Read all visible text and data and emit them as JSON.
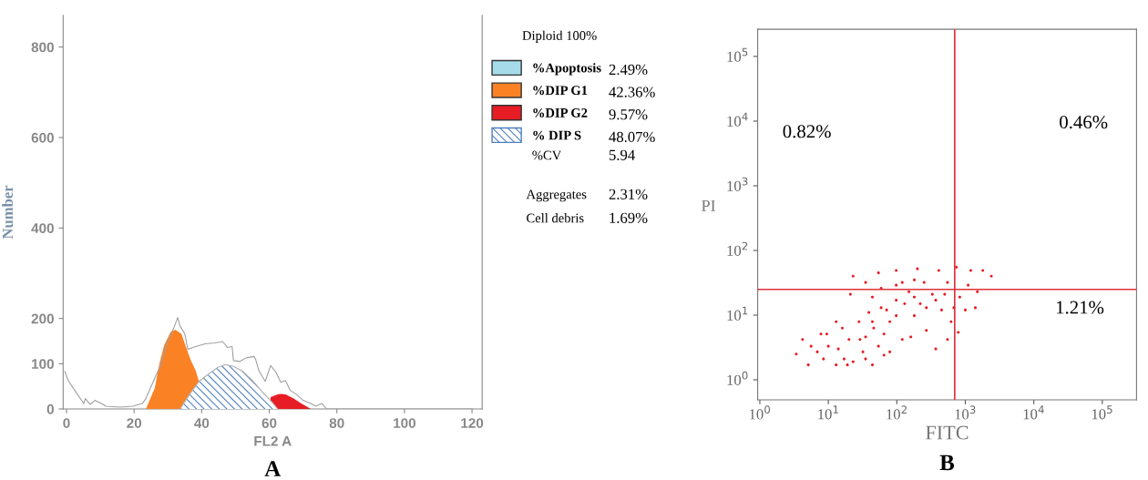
{
  "chart_data": [
    {
      "type": "area",
      "title": "A",
      "xlabel": "FL2 A",
      "ylabel": "Number",
      "xlim": [
        -1,
        123
      ],
      "ylim": [
        0,
        870
      ],
      "xticks": [
        0,
        20,
        40,
        60,
        80,
        100,
        120
      ],
      "yticks": [
        0,
        100,
        200,
        400,
        600,
        800
      ],
      "grid": false,
      "legend": "right",
      "annotations": [
        "Diploid 100%",
        "2.49%",
        "42.36%",
        "9.57%",
        "48.07%",
        "%CV",
        "5.94",
        "Aggregates",
        "2.31%",
        "Cell debris",
        "1.69%"
      ],
      "series": [
        {
          "type": "line",
          "color": "#a0a0a0",
          "x": [
            -0.5,
            0.5,
            2.8,
            5.1,
            5.6,
            7.0,
            8.4,
            10.3,
            11.7,
            15.9,
            19.6,
            22.4,
            23.5,
            26.1,
            28.0,
            29.9,
            31.7,
            32.9,
            33.6,
            35.0,
            35.9,
            38.2,
            41.0,
            43.8,
            46.2,
            47.6,
            49.0,
            49.4,
            51.3,
            53.2,
            55.5,
            56.0,
            56.9,
            58.8,
            60.4,
            62.0,
            63.4,
            64.8,
            66.2,
            68.1,
            70.0,
            72.3,
            73.7,
            75.6,
            77.0,
            90,
            105,
            120
          ],
          "values": [
            83,
            63,
            37,
            12,
            23,
            10,
            19,
            12,
            6,
            4,
            6,
            12,
            23,
            68,
            99,
            149,
            178,
            202,
            183,
            166,
            132,
            138,
            144,
            146,
            149,
            136,
            138,
            107,
            105,
            113,
            116,
            109,
            85,
            61,
            96,
            81,
            59,
            63,
            41,
            32,
            19,
            12,
            6,
            12,
            0,
            0,
            0,
            0
          ]
        },
        {
          "name": "%Apoptosis",
          "color": "#a6dcea"
        },
        {
          "name": "%DIP G1",
          "color": "#fb8125",
          "x": [
            23.5,
            26.1,
            27.5,
            28.9,
            30.8,
            32.2,
            34.0,
            35.4,
            36.8,
            38.2,
            39.2,
            40.1
          ],
          "values": [
            0,
            46,
            100,
            141,
            170,
            175,
            166,
            136,
            107,
            85,
            61,
            0
          ]
        },
        {
          "name": "%DIP G2",
          "color": "#e81c24",
          "x": [
            60.2,
            60.4,
            62.5,
            63.4,
            64.8,
            67.2,
            69.5,
            72.3
          ],
          "values": [
            0,
            26,
            32,
            33,
            32,
            23,
            12,
            0
          ]
        },
        {
          "name": "% DIP S",
          "color": "#4f7fc0",
          "line_style": "dashed",
          "x": [
            33.6,
            36.4,
            39.2,
            42.0,
            44.8,
            47.1,
            49.4,
            52.2,
            55.0,
            57.8,
            60.6,
            62.5
          ],
          "values": [
            0,
            32,
            61,
            77,
            92,
            98,
            94,
            83,
            63,
            39,
            17,
            0
          ]
        }
      ]
    },
    {
      "type": "scatter",
      "title": "B",
      "xlabel": "FITC",
      "ylabel": "PI",
      "log": "xy",
      "marker": "circle",
      "grid": false,
      "xlim": [
        0.93,
        316000
      ],
      "ylim": [
        0.49,
        263000
      ],
      "xticks": [
        {
          "value": 1,
          "label": "10$^{0}$"
        },
        {
          "value": 10,
          "label": "10$^{1}$"
        },
        {
          "value": 100,
          "label": "10$^{2}$"
        },
        {
          "value": 1000,
          "label": "10$^{3}$"
        },
        {
          "value": 10000,
          "label": "10$^{4}$"
        },
        {
          "value": 100000,
          "label": "10$^{5}$"
        }
      ],
      "yticks": [
        {
          "value": 1,
          "label": "10$^{0}$"
        },
        {
          "value": 10,
          "label": "10$^{1}$"
        },
        {
          "value": 100,
          "label": "10$^{2}$"
        },
        {
          "value": 1000,
          "label": "10$^{3}$"
        },
        {
          "value": 10000,
          "label": "10$^{4}$"
        },
        {
          "value": 100000,
          "label": "10$^{5}$"
        }
      ],
      "ref_lines": [
        {
          "axis": "x",
          "value": 700,
          "color": "#e0313a"
        },
        {
          "axis": "y",
          "value": 25,
          "color": "#e0313a"
        }
      ],
      "annotations": [
        "0.82%",
        "0.46%",
        "1.21%"
      ],
      "series": [
        {
          "color": "#e81c24",
          "x": [
            3.4,
            5.1,
            5.6,
            8.5,
            9.5,
            13,
            14,
            16,
            20,
            23,
            28,
            32,
            35,
            44,
            46,
            54,
            39,
            59,
            79,
            98,
            120,
            150,
            180,
            220,
            270,
            330,
            450,
            550,
            620,
            830,
            1100,
            1400,
            1800,
            2400,
            23,
            54,
            98,
            200,
            410,
            21,
            35,
            59,
            120,
            250,
            740,
            1200,
            79,
            160,
            370,
            550,
            790,
            10,
            17,
            29,
            44,
            65,
            98,
            130,
            180,
            270,
            370,
            500,
            680,
            1000,
            1500,
            6.9,
            4.2,
            7.8,
            13,
            19,
            35,
            65,
            71,
            180,
            98,
            44
          ],
          "values": [
            2.5,
            1.7,
            3.3,
            2.1,
            5.1,
            1.7,
            3.0,
            6.3,
            4.2,
            1.9,
            7.9,
            2.7,
            4.6,
            1.7,
            6.3,
            3.3,
            11,
            13,
            7.9,
            17,
            4.2,
            23,
            9.8,
            15,
            5.8,
            21,
            12,
            32,
            7.9,
            19,
            29,
            13,
            49,
            40,
            40,
            45,
            49,
            52,
            49,
            21,
            32,
            26,
            32,
            32,
            55,
            49,
            2.7,
            4.6,
            3.0,
            4.2,
            5.4,
            3.3,
            2.1,
            4.2,
            7.9,
            5.1,
            9.8,
            15,
            19,
            13,
            17,
            21,
            13,
            12,
            23,
            2.7,
            4.2,
            5.1,
            7.9,
            1.7,
            2.1,
            2.4,
            12,
            35,
            29,
            19
          ]
        }
      ]
    }
  ]
}
